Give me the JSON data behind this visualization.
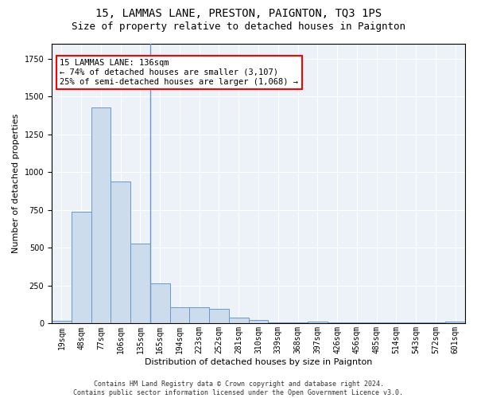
{
  "title": "15, LAMMAS LANE, PRESTON, PAIGNTON, TQ3 1PS",
  "subtitle": "Size of property relative to detached houses in Paignton",
  "xlabel": "Distribution of detached houses by size in Paignton",
  "ylabel": "Number of detached properties",
  "bar_color": "#ccdcec",
  "bar_edge_color": "#6699cc",
  "bg_color": "#edf2f9",
  "grid_color": "#ffffff",
  "categories": [
    "19sqm",
    "48sqm",
    "77sqm",
    "106sqm",
    "135sqm",
    "165sqm",
    "194sqm",
    "223sqm",
    "252sqm",
    "281sqm",
    "310sqm",
    "339sqm",
    "368sqm",
    "397sqm",
    "426sqm",
    "456sqm",
    "485sqm",
    "514sqm",
    "543sqm",
    "572sqm",
    "601sqm"
  ],
  "values": [
    20,
    740,
    1430,
    940,
    530,
    265,
    110,
    110,
    95,
    40,
    25,
    5,
    5,
    15,
    5,
    5,
    5,
    5,
    5,
    5,
    15
  ],
  "ylim": [
    0,
    1850
  ],
  "vline_x": 4.5,
  "annotation_text": "15 LAMMAS LANE: 136sqm\n← 74% of detached houses are smaller (3,107)\n25% of semi-detached houses are larger (1,068) →",
  "footer": "Contains HM Land Registry data © Crown copyright and database right 2024.\nContains public sector information licensed under the Open Government Licence v3.0.",
  "title_fontsize": 10,
  "subtitle_fontsize": 9,
  "xlabel_fontsize": 8,
  "ylabel_fontsize": 8,
  "tick_fontsize": 7,
  "annotation_fontsize": 7.5,
  "footer_fontsize": 6
}
